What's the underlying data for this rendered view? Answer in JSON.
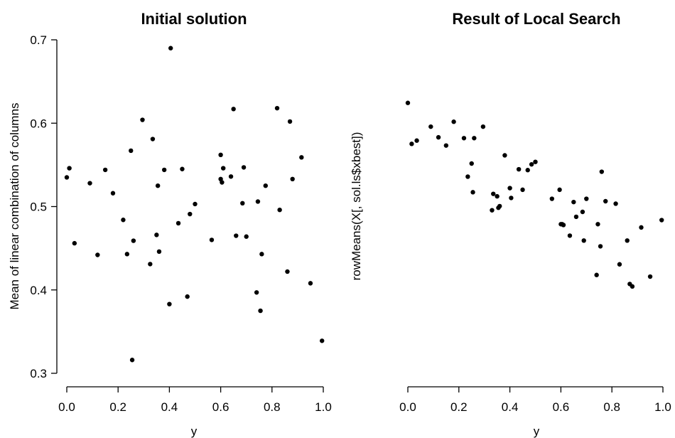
{
  "chart_data": [
    {
      "type": "scatter",
      "title": "Initial solution",
      "xlabel": "y",
      "ylabel": "Mean of linear combination of columns",
      "xlim": [
        0,
        1
      ],
      "ylim": [
        0.3,
        0.7
      ],
      "x_ticks": [
        0.0,
        0.2,
        0.4,
        0.6,
        0.8,
        1.0
      ],
      "x_tick_labels": [
        "0.0",
        "0.2",
        "0.4",
        "0.6",
        "0.8",
        "1.0"
      ],
      "y_ticks": [
        0.3,
        0.4,
        0.5,
        0.6,
        0.7
      ],
      "y_tick_labels": [
        "0.3",
        "0.4",
        "0.5",
        "0.6",
        "0.7"
      ],
      "grid": false,
      "points": [
        [
          0.0,
          0.535
        ],
        [
          0.01,
          0.546
        ],
        [
          0.03,
          0.456
        ],
        [
          0.09,
          0.528
        ],
        [
          0.12,
          0.442
        ],
        [
          0.15,
          0.544
        ],
        [
          0.18,
          0.516
        ],
        [
          0.22,
          0.484
        ],
        [
          0.235,
          0.443
        ],
        [
          0.25,
          0.567
        ],
        [
          0.255,
          0.316
        ],
        [
          0.26,
          0.459
        ],
        [
          0.295,
          0.604
        ],
        [
          0.325,
          0.431
        ],
        [
          0.335,
          0.581
        ],
        [
          0.35,
          0.466
        ],
        [
          0.355,
          0.525
        ],
        [
          0.36,
          0.446
        ],
        [
          0.38,
          0.544
        ],
        [
          0.4,
          0.383
        ],
        [
          0.405,
          0.69
        ],
        [
          0.435,
          0.48
        ],
        [
          0.45,
          0.545
        ],
        [
          0.47,
          0.392
        ],
        [
          0.48,
          0.491
        ],
        [
          0.5,
          0.503
        ],
        [
          0.565,
          0.46
        ],
        [
          0.6,
          0.533
        ],
        [
          0.6,
          0.562
        ],
        [
          0.605,
          0.529
        ],
        [
          0.61,
          0.546
        ],
        [
          0.64,
          0.536
        ],
        [
          0.65,
          0.617
        ],
        [
          0.66,
          0.465
        ],
        [
          0.685,
          0.504
        ],
        [
          0.69,
          0.547
        ],
        [
          0.7,
          0.464
        ],
        [
          0.74,
          0.397
        ],
        [
          0.745,
          0.506
        ],
        [
          0.755,
          0.375
        ],
        [
          0.76,
          0.443
        ],
        [
          0.775,
          0.525
        ],
        [
          0.82,
          0.618
        ],
        [
          0.83,
          0.496
        ],
        [
          0.86,
          0.422
        ],
        [
          0.87,
          0.602
        ],
        [
          0.88,
          0.533
        ],
        [
          0.915,
          0.559
        ],
        [
          0.95,
          0.408
        ],
        [
          0.995,
          0.339
        ]
      ]
    },
    {
      "type": "scatter",
      "title": "Result of Local Search",
      "xlabel": "y",
      "ylabel": "rowMeans(X[, sol.ls$xbest])",
      "xlim": [
        0,
        1
      ],
      "x_ticks": [
        0.0,
        0.2,
        0.4,
        0.6,
        0.8,
        1.0
      ],
      "x_tick_labels": [
        "0.0",
        "0.2",
        "0.4",
        "0.6",
        "0.8",
        "1.0"
      ],
      "grid": false,
      "points": [
        [
          0.0,
          0.622
        ],
        [
          0.015,
          0.572
        ],
        [
          0.035,
          0.576
        ],
        [
          0.09,
          0.593
        ],
        [
          0.12,
          0.58
        ],
        [
          0.15,
          0.57
        ],
        [
          0.18,
          0.599
        ],
        [
          0.22,
          0.579
        ],
        [
          0.235,
          0.532
        ],
        [
          0.25,
          0.548
        ],
        [
          0.255,
          0.513
        ],
        [
          0.26,
          0.579
        ],
        [
          0.295,
          0.593
        ],
        [
          0.33,
          0.491
        ],
        [
          0.335,
          0.511
        ],
        [
          0.35,
          0.508
        ],
        [
          0.355,
          0.494
        ],
        [
          0.36,
          0.496
        ],
        [
          0.38,
          0.558
        ],
        [
          0.4,
          0.518
        ],
        [
          0.405,
          0.506
        ],
        [
          0.435,
          0.541
        ],
        [
          0.45,
          0.516
        ],
        [
          0.47,
          0.54
        ],
        [
          0.485,
          0.547
        ],
        [
          0.5,
          0.55
        ],
        [
          0.565,
          0.505
        ],
        [
          0.595,
          0.516
        ],
        [
          0.6,
          0.474
        ],
        [
          0.605,
          0.474
        ],
        [
          0.61,
          0.473
        ],
        [
          0.635,
          0.46
        ],
        [
          0.65,
          0.501
        ],
        [
          0.66,
          0.483
        ],
        [
          0.685,
          0.489
        ],
        [
          0.69,
          0.454
        ],
        [
          0.7,
          0.505
        ],
        [
          0.74,
          0.412
        ],
        [
          0.745,
          0.474
        ],
        [
          0.755,
          0.447
        ],
        [
          0.76,
          0.538
        ],
        [
          0.775,
          0.502
        ],
        [
          0.815,
          0.499
        ],
        [
          0.83,
          0.425
        ],
        [
          0.86,
          0.454
        ],
        [
          0.87,
          0.401
        ],
        [
          0.88,
          0.398
        ],
        [
          0.915,
          0.47
        ],
        [
          0.95,
          0.41
        ],
        [
          0.995,
          0.479
        ]
      ]
    }
  ]
}
